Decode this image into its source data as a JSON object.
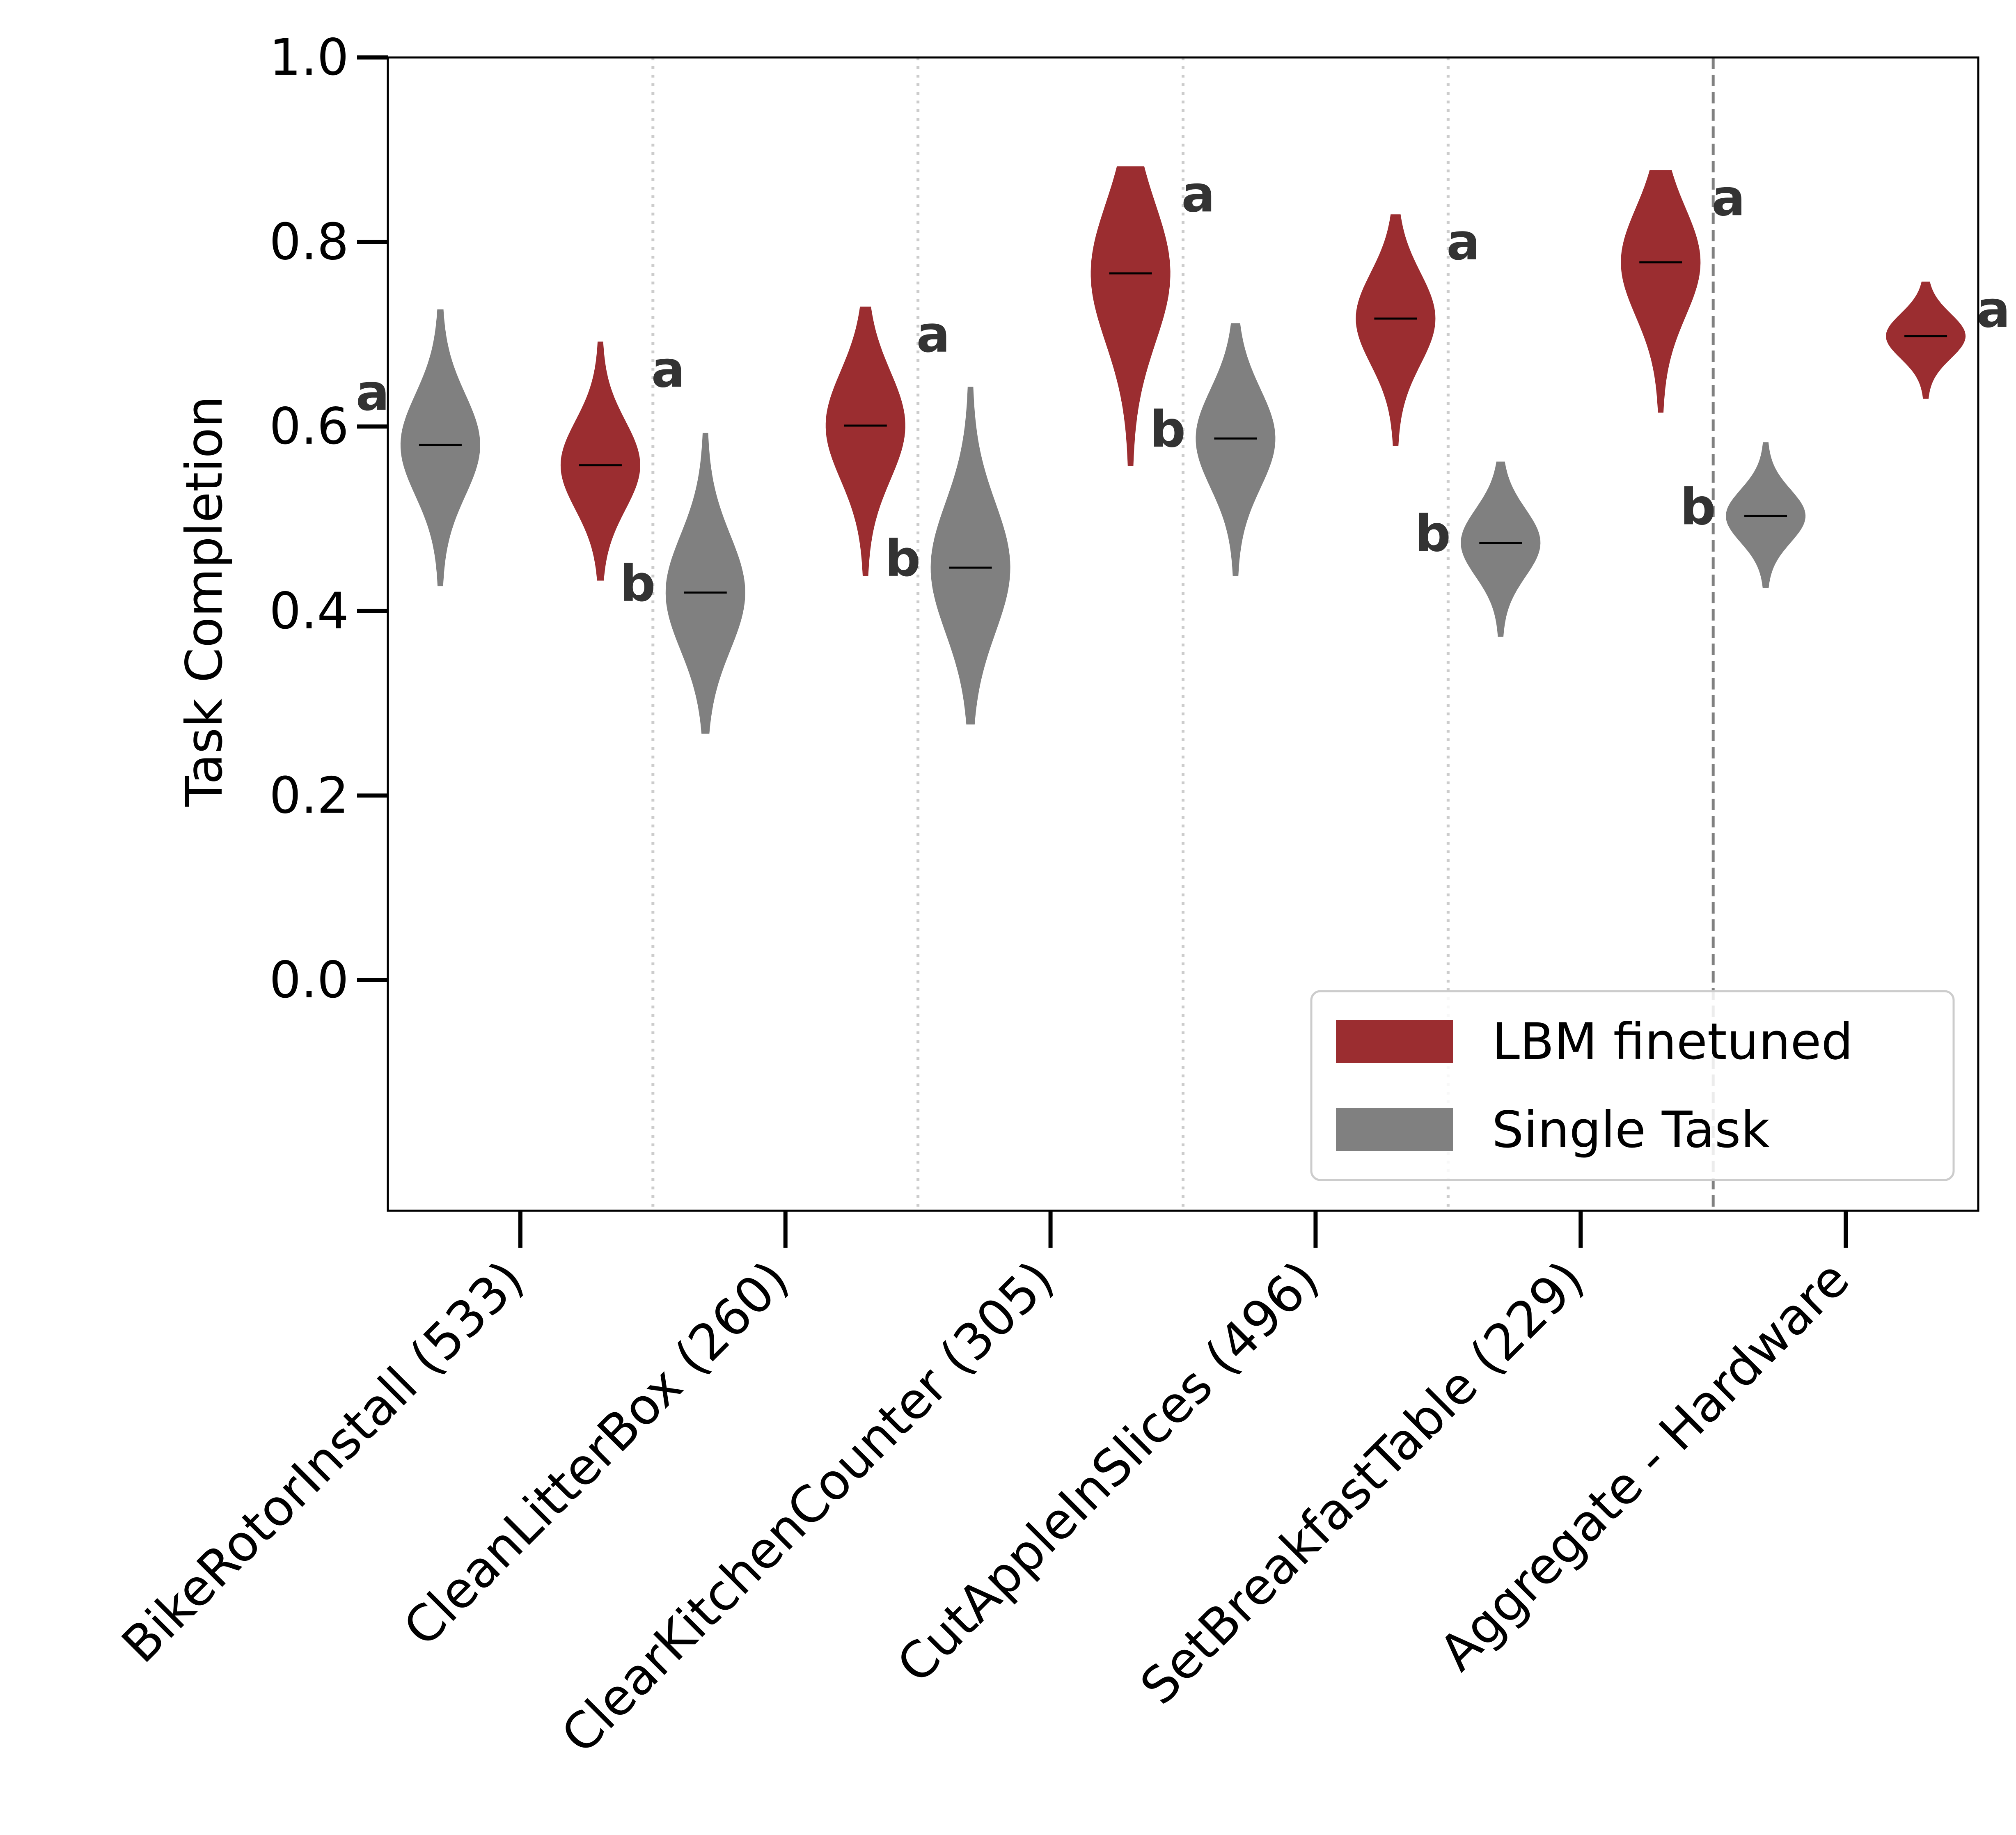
{
  "chart_data": {
    "type": "violin",
    "ylabel": "Task Completion",
    "ylim": [
      -0.25,
      1.0
    ],
    "yticks": [
      "0.0",
      "0.2",
      "0.4",
      "0.6",
      "0.8",
      "1.0"
    ],
    "ytick_values": [
      0.0,
      0.2,
      0.4,
      0.6,
      0.8,
      1.0
    ],
    "categories": [
      "BikeRotorInstall (533)",
      "CleanLitterBox (260)",
      "ClearKitchenCounter (305)",
      "CutAppleInSlices (496)",
      "SetBreakfastTable (229)",
      "Aggregate - Hardware"
    ],
    "legend": {
      "position": "lower-right",
      "entries": [
        "LBM finetuned",
        "Single Task"
      ]
    },
    "grid": false,
    "colors": {
      "LBM finetuned": "#9b2d30",
      "Single Task": "#808080",
      "median_line": "#000000",
      "letters": "#333333"
    },
    "series": [
      {
        "name": "Single Task",
        "median": [
          0.58,
          0.42,
          0.447,
          0.587,
          0.474,
          0.503
        ],
        "min": [
          0.427,
          0.267,
          0.277,
          0.438,
          0.372,
          0.425
        ],
        "max": [
          0.727,
          0.593,
          0.643,
          0.712,
          0.562,
          0.583
        ],
        "letters": [
          "a",
          "b",
          "b",
          "b",
          "b",
          "b"
        ]
      },
      {
        "name": "LBM finetuned",
        "median": [
          0.558,
          0.601,
          0.766,
          0.717,
          0.778,
          0.698
        ],
        "min": [
          0.433,
          0.438,
          0.557,
          0.579,
          0.615,
          0.63
        ],
        "max": [
          0.692,
          0.73,
          0.882,
          0.83,
          0.878,
          0.757
        ],
        "letters": [
          "a",
          "a",
          "a",
          "a",
          "a",
          "a"
        ]
      }
    ]
  }
}
